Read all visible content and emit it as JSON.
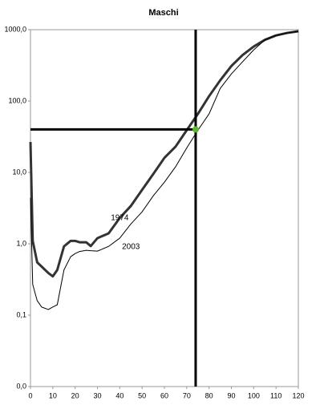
{
  "chart_data": {
    "type": "line",
    "title": "Maschi",
    "x": [
      0,
      1,
      3,
      5,
      8,
      10,
      12,
      15,
      18,
      20,
      22,
      25,
      27,
      30,
      35,
      40,
      45,
      50,
      55,
      60,
      65,
      70,
      75,
      80,
      85,
      90,
      95,
      100,
      105,
      110,
      115,
      120
    ],
    "series": [
      {
        "name": "1974",
        "color": "#333333",
        "values": [
          26.7,
          1.1,
          0.55,
          0.48,
          0.39,
          0.35,
          0.43,
          0.92,
          1.1,
          1.1,
          1.05,
          1.05,
          0.93,
          1.2,
          1.4,
          2.3,
          3.4,
          5.7,
          9.5,
          16,
          23,
          39,
          66,
          117,
          195,
          310,
          440,
          580,
          720,
          830,
          900,
          950
        ]
      },
      {
        "name": "2003",
        "color": "#000000",
        "values": [
          4.4,
          0.27,
          0.16,
          0.13,
          0.12,
          0.13,
          0.14,
          0.43,
          0.66,
          0.73,
          0.78,
          0.81,
          0.8,
          0.79,
          0.92,
          1.2,
          1.9,
          2.8,
          4.7,
          7.3,
          12,
          22,
          39,
          66,
          150,
          240,
          355,
          520,
          720,
          830,
          900,
          950
        ]
      }
    ],
    "xlim": [
      0,
      120
    ],
    "xticks": [
      0,
      10,
      20,
      30,
      40,
      50,
      60,
      70,
      80,
      90,
      100,
      110,
      120
    ],
    "ylim": [
      0.01,
      1000
    ],
    "log_scale_y": true,
    "yticks": [
      {
        "value": 0.01,
        "label": "0,0"
      },
      {
        "value": 0.1,
        "label": "0,1"
      },
      {
        "value": 1,
        "label": "1,0"
      },
      {
        "value": 10,
        "label": "10,0"
      },
      {
        "value": 100,
        "label": "100,0"
      },
      {
        "value": 1000,
        "label": "1000,0"
      }
    ],
    "reference": {
      "x": 74,
      "y": 40,
      "color": "#5cb82f"
    }
  }
}
